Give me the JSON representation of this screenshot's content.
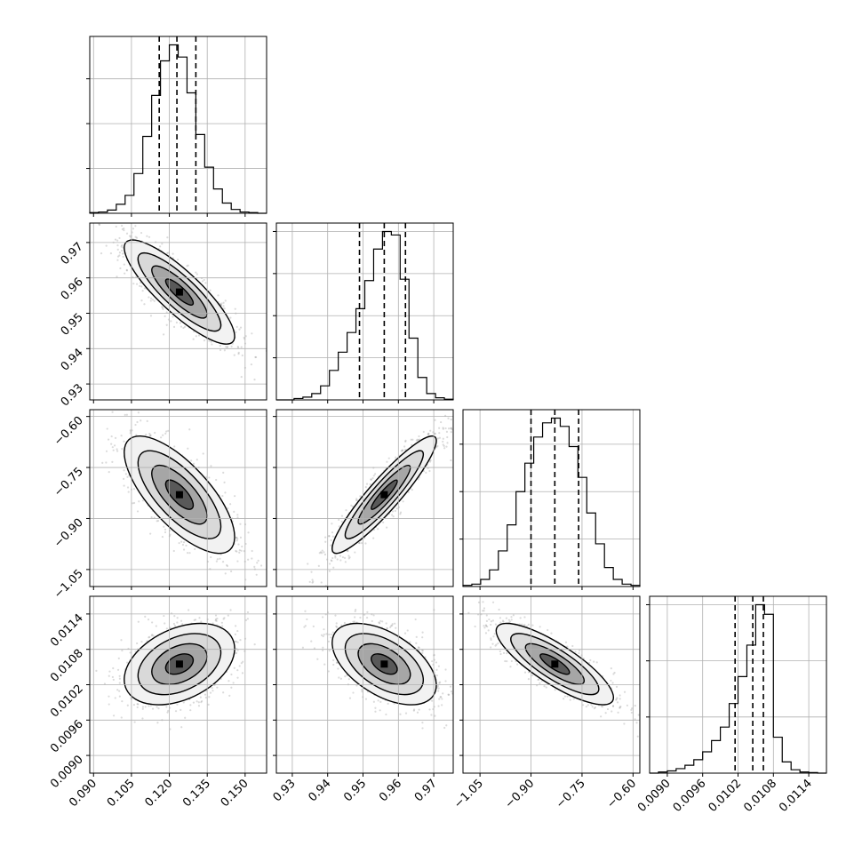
{
  "chart_data": {
    "type": "corner",
    "title": "",
    "grid": true,
    "parameters": [
      {
        "index": 0,
        "xlim": [
          0.0885,
          0.1585
        ],
        "ylim": [
          0.9255,
          0.9755
        ],
        "ticks": [
          0.09,
          0.105,
          0.12,
          0.135,
          0.15
        ],
        "tick_labels": [
          "0.090",
          "0.105",
          "0.120",
          "0.135",
          "0.150"
        ],
        "mean": 0.124,
        "sd": 0.0095,
        "quantiles": [
          0.116,
          0.123,
          0.1305
        ]
      },
      {
        "index": 1,
        "xlim": [
          0.9255,
          0.9755
        ],
        "ylim": [
          -1.1,
          -0.58
        ],
        "ticks": [
          0.93,
          0.94,
          0.95,
          0.96,
          0.97
        ],
        "tick_labels": [
          "0.93",
          "0.94",
          "0.95",
          "0.96",
          "0.97"
        ],
        "mean": 0.956,
        "sd": 0.0064,
        "quantiles": [
          0.949,
          0.956,
          0.962
        ]
      },
      {
        "index": 2,
        "xlim": [
          -1.1,
          -0.58
        ],
        "ylim": [
          0.0087,
          0.0117
        ],
        "ticks": [
          -1.05,
          -0.9,
          -0.75,
          -0.6
        ],
        "tick_labels": [
          "−1.05",
          "−0.90",
          "−0.75",
          "−0.60"
        ],
        "mean": -0.83,
        "sd": 0.075,
        "quantiles": [
          -0.9,
          -0.83,
          -0.76
        ]
      },
      {
        "index": 3,
        "xlim": [
          0.0087,
          0.0117
        ],
        "ticks": [
          0.009,
          0.0096,
          0.0102,
          0.0108,
          0.0114
        ],
        "tick_labels": [
          "0.0090",
          "0.0096",
          "0.0102",
          "0.0108",
          "0.0114"
        ],
        "mean": 0.01055,
        "sd": 0.0003,
        "quantiles": [
          0.01015,
          0.01045,
          0.01063
        ]
      }
    ],
    "histograms": [
      {
        "param": 0,
        "edges": [
          0.0885,
          0.092,
          0.0955,
          0.099,
          0.1025,
          0.106,
          0.1095,
          0.113,
          0.1165,
          0.12,
          0.1235,
          0.127,
          0.1305,
          0.134,
          0.1375,
          0.141,
          0.1445,
          0.148,
          0.1515,
          0.155,
          0.1585
        ],
        "counts": [
          1,
          2,
          5,
          14,
          28,
          62,
          120,
          184,
          238,
          263,
          244,
          188,
          123,
          72,
          38,
          16,
          6,
          2,
          1,
          0
        ]
      },
      {
        "param": 1,
        "edges": [
          0.9255,
          0.928,
          0.9305,
          0.933,
          0.9355,
          0.938,
          0.9405,
          0.943,
          0.9455,
          0.948,
          0.9505,
          0.953,
          0.9555,
          0.958,
          0.9605,
          0.963,
          0.9655,
          0.968,
          0.9705,
          0.973,
          0.9755
        ],
        "counts": [
          0,
          0,
          2,
          4,
          9,
          20,
          42,
          68,
          96,
          130,
          170,
          215,
          240,
          235,
          172,
          88,
          32,
          9,
          3,
          1
        ]
      },
      {
        "param": 2,
        "edges": [
          -1.1,
          -1.074,
          -1.048,
          -1.022,
          -0.996,
          -0.97,
          -0.944,
          -0.918,
          -0.892,
          -0.866,
          -0.84,
          -0.814,
          -0.788,
          -0.762,
          -0.736,
          -0.71,
          -0.684,
          -0.658,
          -0.632,
          -0.606,
          -0.58
        ],
        "counts": [
          1,
          2,
          6,
          14,
          30,
          52,
          80,
          104,
          126,
          138,
          142,
          135,
          118,
          92,
          62,
          36,
          16,
          6,
          2,
          1
        ]
      },
      {
        "param": 3,
        "edges": [
          0.0087,
          0.00885,
          0.009,
          0.00915,
          0.0093,
          0.00945,
          0.0096,
          0.00975,
          0.0099,
          0.01005,
          0.0102,
          0.01035,
          0.0105,
          0.01065,
          0.0108,
          0.01095,
          0.0111,
          0.01125,
          0.0114,
          0.01155,
          0.0117
        ],
        "counts": [
          0,
          2,
          4,
          8,
          14,
          24,
          38,
          58,
          82,
          124,
          172,
          228,
          300,
          283,
          64,
          20,
          6,
          2,
          1,
          0
        ]
      }
    ],
    "pairs": [
      {
        "x": 0,
        "y": 1,
        "rho": -0.85
      },
      {
        "x": 0,
        "y": 2,
        "rho": -0.72
      },
      {
        "x": 1,
        "y": 2,
        "rho": 0.92
      },
      {
        "x": 0,
        "y": 3,
        "rho": 0.38
      },
      {
        "x": 1,
        "y": 3,
        "rho": -0.52
      },
      {
        "x": 2,
        "y": 3,
        "rho": -0.82
      }
    ],
    "contour_levels_sigma": [
      0.5,
      1.0,
      1.5,
      2.0
    ],
    "samples_per_panel": 1200,
    "colors": {
      "histogram": "#000000",
      "quantile_line": "#000000",
      "scatter": "#7f7f7f",
      "density_dark": "#000000",
      "grid": "#b0b0b0",
      "frame": "#000000"
    }
  }
}
